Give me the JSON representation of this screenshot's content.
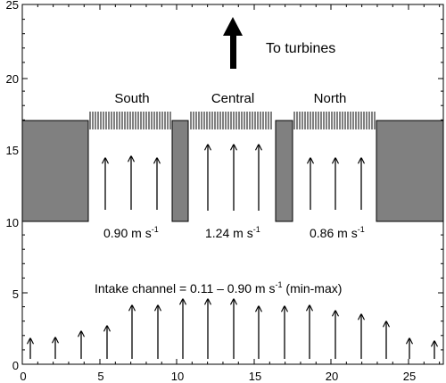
{
  "axes": {
    "x_ticks": [
      "0",
      "5",
      "10",
      "15",
      "20",
      "25"
    ],
    "y_ticks": [
      "0",
      "5",
      "10",
      "15",
      "20",
      "25"
    ]
  },
  "labels": {
    "to_turbines": "To turbines",
    "bays": [
      {
        "name": "South",
        "velocity": "0.90 m s",
        "unit_exp": "-1"
      },
      {
        "name": "Central",
        "velocity": "1.24 m s",
        "unit_exp": "-1"
      },
      {
        "name": "North",
        "velocity": "0.86 m s",
        "unit_exp": "-1"
      }
    ],
    "intake": {
      "prefix": "Intake channel = 0.11 – 0.90 m s",
      "exp": "-1",
      "suffix": " (min-max)"
    }
  },
  "colors": {
    "pier_fill": "#808080",
    "stroke": "#000000"
  }
}
